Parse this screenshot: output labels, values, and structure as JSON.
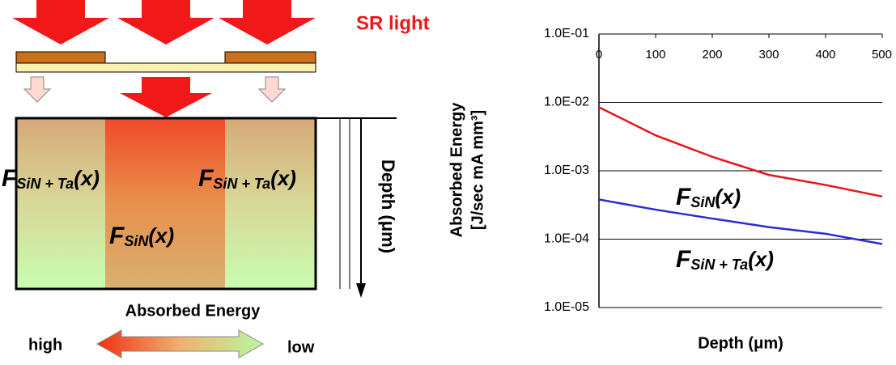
{
  "diagram": {
    "source_label": "SR light",
    "depth_label": "Depth (μm)",
    "side_label": {
      "symbol": "F",
      "subscript": "SiN + Ta",
      "argument": "(x)"
    },
    "center_label": {
      "symbol": "F",
      "subscript": "SiN",
      "argument": "(x)"
    },
    "scale_title": "Absorbed Energy",
    "scale_high": "high",
    "scale_low": "low"
  },
  "chart_data": {
    "type": "line",
    "xlabel": "Depth (μm)",
    "ylabel": [
      "Absorbed Energy",
      "[J/sec mA mm³]"
    ],
    "x": [
      0,
      100,
      200,
      300,
      400,
      500
    ],
    "series": [
      {
        "label": {
          "symbol": "F",
          "subscript": "SiN",
          "argument": "(x)"
        },
        "color": "#e8141b",
        "values": [
          0.0085,
          0.0033,
          0.0016,
          0.00087,
          0.00062,
          0.00042
        ]
      },
      {
        "label": {
          "symbol": "F",
          "subscript": "SiN + Ta",
          "argument": "(x)"
        },
        "color": "#2b2bd6",
        "values": [
          0.00038,
          0.00027,
          0.0002,
          0.00015,
          0.00012,
          8.5e-05
        ]
      }
    ],
    "xlim": [
      0,
      500
    ],
    "xticks": [
      0,
      100,
      200,
      300,
      400,
      500
    ],
    "ylim": [
      1e-05,
      0.1
    ],
    "yticks": [
      {
        "value": 1e-05,
        "label": "1.0E-05"
      },
      {
        "value": 0.0001,
        "label": "1.0E-04"
      },
      {
        "value": 0.001,
        "label": "1.0E-03"
      },
      {
        "value": 0.01,
        "label": "1.0E-02"
      },
      {
        "value": 0.1,
        "label": "1.0E-01"
      }
    ],
    "log_y": true,
    "grid": true
  }
}
